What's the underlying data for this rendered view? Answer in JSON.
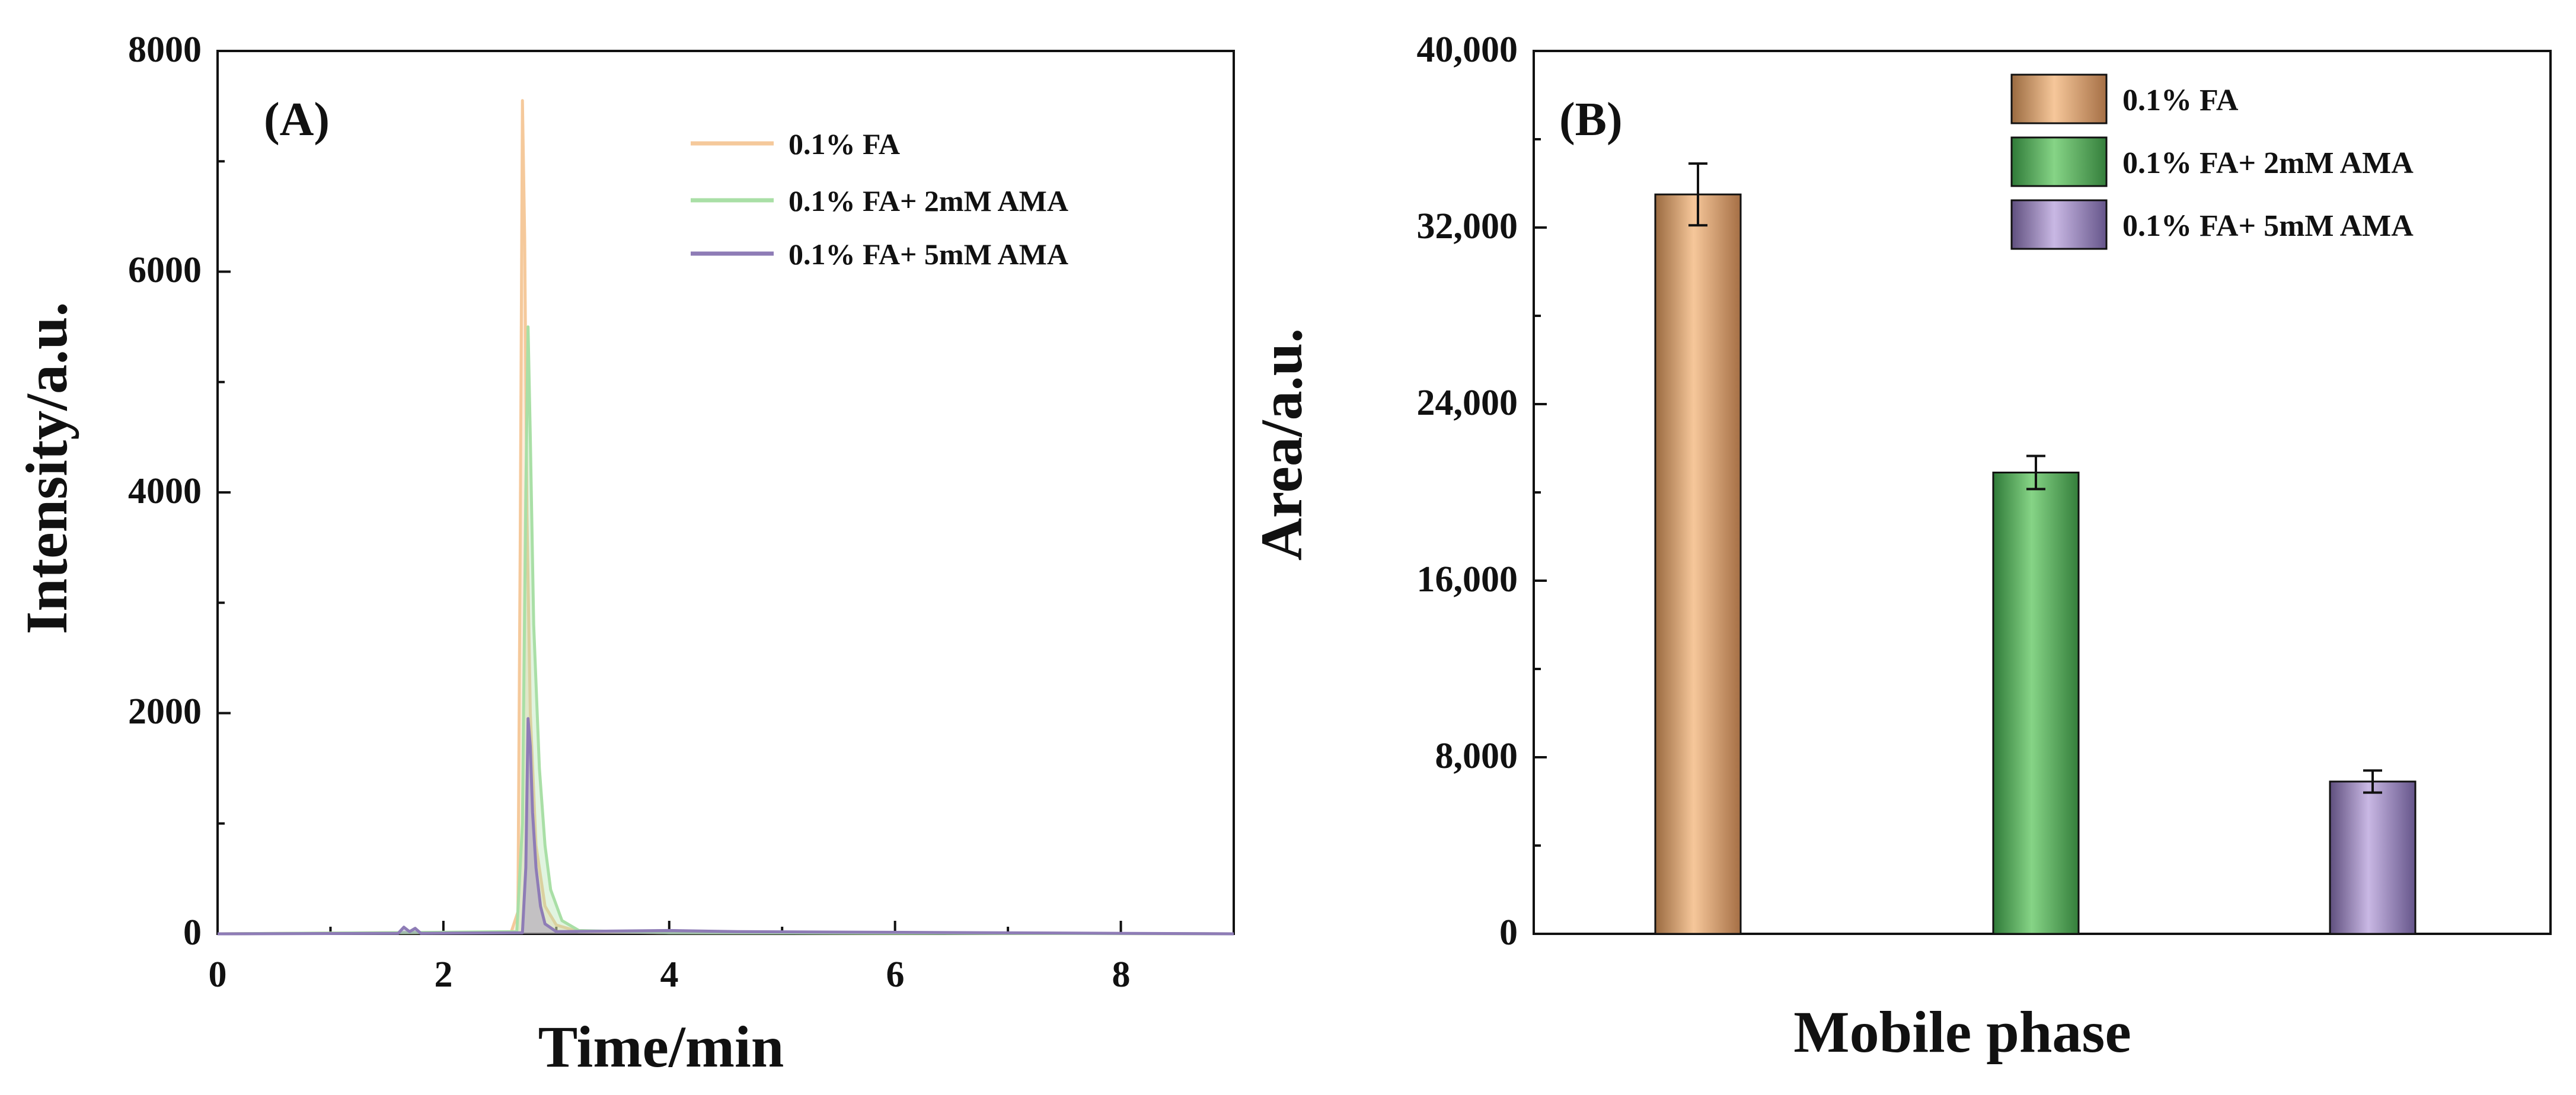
{
  "colors": {
    "fa": "#F5C99B",
    "fa_2mM": "#A9DFA6",
    "fa_5mM": "#8E7CB6",
    "bar_fa": "#F0B07A",
    "bar_fa_2mM": "#6FC46F",
    "bar_fa_5mM": "#B9A6D6",
    "axis": "#111111"
  },
  "chart_data": [
    {
      "type": "line",
      "panel_label": "(A)",
      "xlabel": "Time/min",
      "ylabel": "Intensity/a.u.",
      "xlim": [
        0,
        9
      ],
      "ylim": [
        0,
        8000
      ],
      "xticks": [
        "0",
        "2",
        "4",
        "6",
        "8"
      ],
      "yticks": [
        "0",
        "2000",
        "4000",
        "6000",
        "8000"
      ],
      "legend_position": "top-right",
      "series": [
        {
          "name": "0.1% FA",
          "color_key": "fa",
          "x": [
            0,
            1.5,
            2.6,
            2.66,
            2.68,
            2.7,
            2.72,
            2.74,
            2.77,
            2.82,
            2.9,
            3.0,
            3.2,
            4.0,
            9.0
          ],
          "y": [
            0,
            10,
            15,
            200,
            3500,
            7550,
            6300,
            3800,
            2000,
            800,
            250,
            80,
            20,
            10,
            0
          ]
        },
        {
          "name": "0.1% FA+ 2mM AMA",
          "color_key": "fa_2mM",
          "x": [
            0,
            1.5,
            2.65,
            2.7,
            2.73,
            2.75,
            2.77,
            2.8,
            2.85,
            2.9,
            2.95,
            3.05,
            3.2,
            4.0,
            9.0
          ],
          "y": [
            0,
            10,
            20,
            1000,
            4000,
            5500,
            4500,
            2800,
            1500,
            800,
            400,
            120,
            30,
            10,
            0
          ]
        },
        {
          "name": "0.1% FA+ 5mM AMA",
          "color_key": "fa_5mM",
          "x": [
            0,
            1.6,
            1.65,
            1.7,
            1.75,
            1.8,
            2.7,
            2.73,
            2.75,
            2.77,
            2.79,
            2.82,
            2.86,
            2.9,
            3.0,
            4.0,
            4.6,
            9.0
          ],
          "y": [
            0,
            5,
            60,
            20,
            50,
            5,
            10,
            600,
            1950,
            1700,
            1100,
            600,
            250,
            90,
            20,
            30,
            20,
            0
          ]
        }
      ]
    },
    {
      "type": "bar",
      "panel_label": "(B)",
      "xlabel": "Mobile phase",
      "ylabel": "Area/a.u.",
      "ylim": [
        0,
        40000
      ],
      "yticks": [
        "0",
        "8,000",
        "16,000",
        "24,000",
        "32,000",
        "40,000"
      ],
      "legend_position": "top-right",
      "categories": [
        "0.1% FA",
        "0.1% FA+ 2mM AMA",
        "0.1% FA+ 5mM AMA"
      ],
      "values": [
        33500,
        20900,
        6900
      ],
      "errors": [
        1400,
        750,
        500
      ],
      "color_keys": [
        "bar_fa",
        "bar_fa_2mM",
        "bar_fa_5mM"
      ]
    }
  ]
}
